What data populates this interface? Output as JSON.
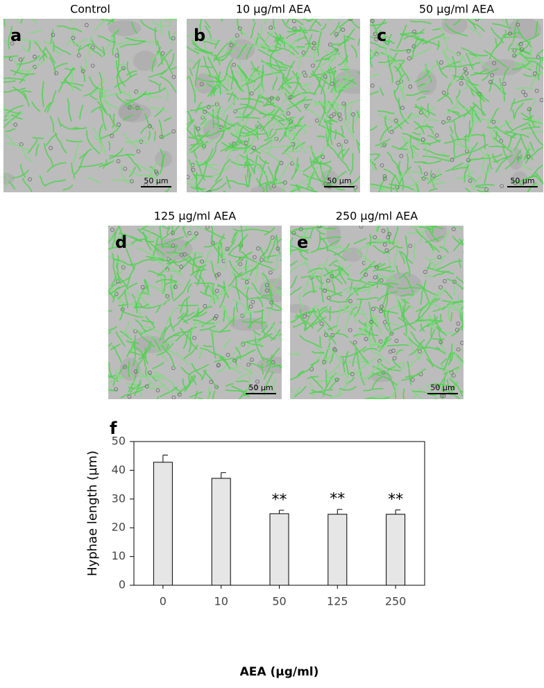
{
  "panels": [
    {
      "label": "a",
      "title": "Control",
      "scale_bar": "50 µm"
    },
    {
      "label": "b",
      "title": "10 µg/ml AEA",
      "scale_bar": "50 µm"
    },
    {
      "label": "c",
      "title": "50 µg/ml AEA",
      "scale_bar": "50 µm"
    },
    {
      "label": "d",
      "title": "125 µg/ml AEA",
      "scale_bar": "50 µm"
    },
    {
      "label": "e",
      "title": "250 µg/ml AEA",
      "scale_bar": "50 µm"
    }
  ],
  "chart_data": {
    "type": "bar",
    "label": "f",
    "x_label": "AEA (µg/ml)",
    "y_label": "Hyphae length (µm)",
    "categories": [
      "0",
      "10",
      "50",
      "125",
      "250"
    ],
    "values": [
      42.8,
      37.2,
      24.9,
      24.7,
      24.7
    ],
    "errors": [
      2.5,
      2.0,
      1.2,
      1.7,
      1.5
    ],
    "significance": [
      null,
      null,
      "**",
      "**",
      "**"
    ],
    "color": "#e6e6e6",
    "ylim": [
      0,
      50
    ],
    "yticks": [
      0,
      10,
      20,
      30,
      40,
      50
    ]
  }
}
